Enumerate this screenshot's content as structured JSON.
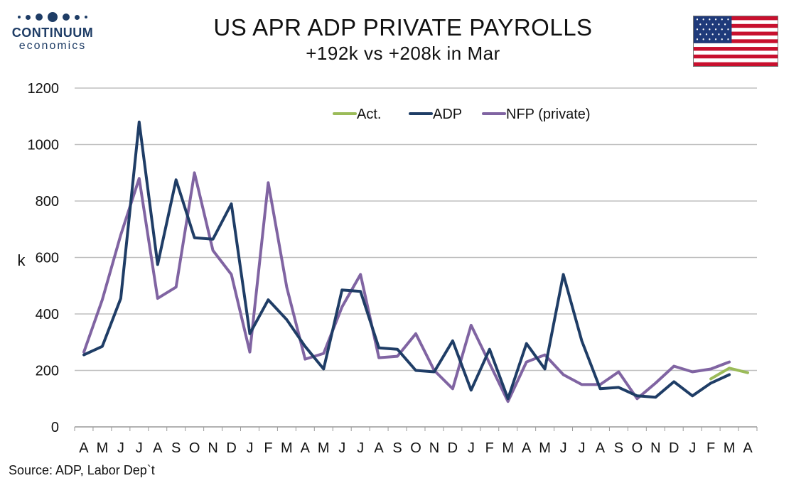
{
  "header": {
    "logo_name": "CONTINUUM",
    "logo_sub": "economics",
    "title": "US APR ADP PRIVATE PAYROLLS",
    "subtitle": "+192k vs +208k in Mar"
  },
  "footer": {
    "source": "Source: ADP, Labor Dep`t"
  },
  "colors": {
    "act": "#9bbb59",
    "adp": "#1f3d66",
    "nfp": "#8064a2",
    "grid": "#bfbfbf",
    "axis": "#999999"
  },
  "flag_icon": "us-flag-icon",
  "chart_data": {
    "type": "line",
    "title": "US APR ADP PRIVATE PAYROLLS",
    "subtitle": "+192k vs +208k in Mar",
    "ylabel": "k",
    "ylim": [
      0,
      1200
    ],
    "yticks": [
      0,
      200,
      400,
      600,
      800,
      1000,
      1200
    ],
    "grid": true,
    "legend": "top-center",
    "categories": [
      "A",
      "M",
      "J",
      "J",
      "A",
      "S",
      "O",
      "N",
      "D",
      "J",
      "F",
      "M",
      "A",
      "M",
      "J",
      "J",
      "A",
      "S",
      "O",
      "N",
      "D",
      "J",
      "F",
      "M",
      "A",
      "M",
      "J",
      "J",
      "A",
      "S",
      "O",
      "N",
      "D",
      "J",
      "F",
      "M",
      "A"
    ],
    "series": [
      {
        "name": "Act.",
        "color": "#9bbb59",
        "values": [
          null,
          null,
          null,
          null,
          null,
          null,
          null,
          null,
          null,
          null,
          null,
          null,
          null,
          null,
          null,
          null,
          null,
          null,
          null,
          null,
          null,
          null,
          null,
          null,
          null,
          null,
          null,
          null,
          null,
          null,
          null,
          null,
          null,
          null,
          170,
          208,
          192
        ]
      },
      {
        "name": "ADP",
        "color": "#1f3d66",
        "values": [
          255,
          285,
          455,
          1080,
          575,
          875,
          670,
          665,
          790,
          330,
          450,
          380,
          285,
          205,
          485,
          480,
          280,
          275,
          200,
          195,
          305,
          130,
          275,
          100,
          295,
          205,
          540,
          305,
          135,
          140,
          110,
          105,
          160,
          110,
          155,
          185,
          null
        ]
      },
      {
        "name": "NFP (private)",
        "color": "#8064a2",
        "values": [
          265,
          450,
          680,
          880,
          455,
          495,
          900,
          625,
          540,
          265,
          865,
          495,
          240,
          260,
          425,
          540,
          245,
          250,
          330,
          200,
          135,
          360,
          225,
          90,
          230,
          255,
          185,
          150,
          150,
          195,
          100,
          155,
          215,
          195,
          205,
          230,
          null
        ]
      }
    ]
  }
}
